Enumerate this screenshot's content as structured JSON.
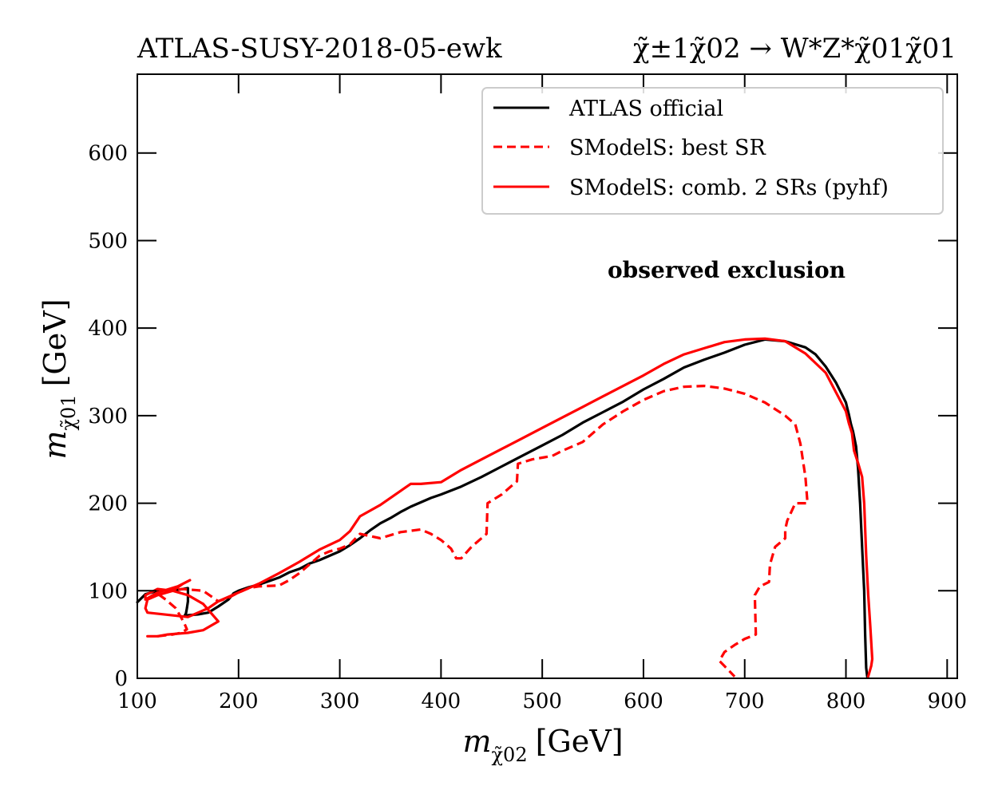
{
  "chart_data": {
    "type": "line",
    "title_left": "ATLAS-SUSY-2018-05-ewk",
    "title_right": "χ̃±1χ̃02 → W*Z*χ̃01χ̃01",
    "xlabel": "m_χ̃02 [GeV]",
    "xlabel_main": "m",
    "xlabel_sub": "χ̃02",
    "xlabel_unit": "[GeV]",
    "ylabel": "m_χ̃01 [GeV]",
    "ylabel_main": "m",
    "ylabel_sub": "χ̃01",
    "ylabel_unit": "[GeV]",
    "xlim": [
      100,
      910
    ],
    "ylim": [
      0,
      690
    ],
    "xticks": [
      100,
      200,
      300,
      400,
      500,
      600,
      700,
      800,
      900
    ],
    "yticks": [
      0,
      100,
      200,
      300,
      400,
      500,
      600
    ],
    "grid": false,
    "legend_position": "top-right",
    "annotation": "observed exclusion",
    "series": [
      {
        "name": "ATLAS official",
        "color": "#000000",
        "style": "solid",
        "x": [
          100,
          108,
          120,
          140,
          150,
          150,
          149,
          148,
          147,
          148,
          150,
          160,
          170,
          180,
          190,
          195,
          200,
          210,
          220,
          230,
          240,
          250,
          260,
          270,
          280,
          290,
          300,
          310,
          320,
          330,
          340,
          350,
          360,
          370,
          380,
          390,
          400,
          420,
          440,
          460,
          480,
          500,
          520,
          540,
          560,
          580,
          600,
          620,
          640,
          660,
          680,
          700,
          720,
          740,
          760,
          770,
          780,
          790,
          800,
          803,
          805,
          807,
          810,
          812,
          814,
          816,
          818,
          819,
          820,
          821
        ],
        "y": [
          87,
          96,
          100,
          101,
          103,
          88,
          80,
          74,
          72,
          71,
          72,
          73,
          75,
          82,
          90,
          97,
          100,
          104,
          107,
          111,
          115,
          121,
          125,
          131,
          135,
          140,
          145,
          152,
          160,
          169,
          177,
          183,
          190,
          196,
          201,
          206,
          210,
          219,
          230,
          242,
          254,
          266,
          278,
          292,
          304,
          316,
          330,
          342,
          355,
          364,
          372,
          381,
          387,
          385,
          378,
          370,
          356,
          338,
          315,
          301,
          290,
          282,
          265,
          240,
          200,
          150,
          100,
          50,
          12,
          2
        ]
      },
      {
        "name": "SModelS: best SR",
        "color": "#ff0000",
        "style": "dashed",
        "x": [
          120,
          135,
          143,
          149,
          146,
          138,
          128,
          122,
          130,
          145,
          165,
          175,
          180,
          190,
          200,
          210,
          220,
          240,
          250,
          260,
          270,
          280,
          290,
          300,
          310,
          320,
          340,
          360,
          380,
          390,
          400,
          410,
          415,
          420,
          430,
          445,
          446,
          460,
          470,
          475,
          476,
          490,
          500,
          510,
          520,
          540,
          560,
          580,
          600,
          620,
          640,
          660,
          680,
          700,
          720,
          740,
          750,
          755,
          760,
          762,
          761,
          750,
          742,
          740,
          740,
          730,
          725,
          724,
          715,
          710,
          711,
          700,
          690,
          680,
          675,
          680,
          690
        ],
        "y": [
          48,
          50,
          52,
          56,
          64,
          80,
          90,
          95,
          100,
          102,
          100,
          92,
          88,
          92,
          98,
          103,
          105,
          106,
          112,
          120,
          130,
          140,
          145,
          148,
          153,
          165,
          160,
          167,
          170,
          165,
          158,
          148,
          137,
          137,
          150,
          165,
          200,
          210,
          220,
          225,
          245,
          250,
          252,
          254,
          260,
          270,
          290,
          305,
          318,
          328,
          333,
          334,
          331,
          325,
          315,
          300,
          290,
          268,
          230,
          200,
          200,
          200,
          180,
          170,
          160,
          150,
          130,
          110,
          105,
          95,
          50,
          45,
          38,
          30,
          20,
          14,
          2
        ]
      },
      {
        "name": "SModelS: comb. 2 SRs (pyhf)",
        "color": "#ff0000",
        "style": "solid",
        "x": [
          110,
          120,
          130,
          150,
          165,
          180,
          165,
          150,
          135,
          120,
          108,
          108,
          120,
          140,
          152,
          145,
          135,
          120,
          110,
          108,
          110,
          150,
          170,
          180,
          200,
          220,
          240,
          260,
          280,
          300,
          310,
          320,
          340,
          360,
          370,
          380,
          400,
          420,
          440,
          460,
          480,
          500,
          520,
          540,
          560,
          580,
          600,
          620,
          640,
          660,
          680,
          700,
          720,
          740,
          760,
          780,
          800,
          803,
          806,
          808,
          812,
          816,
          818,
          820,
          822,
          824,
          826,
          825,
          822
        ],
        "y": [
          48,
          48,
          50,
          52,
          55,
          65,
          85,
          95,
          100,
          102,
          95,
          90,
          98,
          105,
          112,
          108,
          100,
          95,
          90,
          80,
          75,
          70,
          80,
          88,
          98,
          108,
          120,
          133,
          147,
          158,
          168,
          185,
          198,
          214,
          222,
          222,
          224,
          238,
          250,
          262,
          274,
          286,
          298,
          310,
          322,
          334,
          346,
          359,
          370,
          377,
          384,
          387,
          388,
          385,
          371,
          349,
          305,
          291,
          280,
          260,
          246,
          230,
          200,
          140,
          96,
          60,
          22,
          14,
          2
        ]
      }
    ]
  }
}
